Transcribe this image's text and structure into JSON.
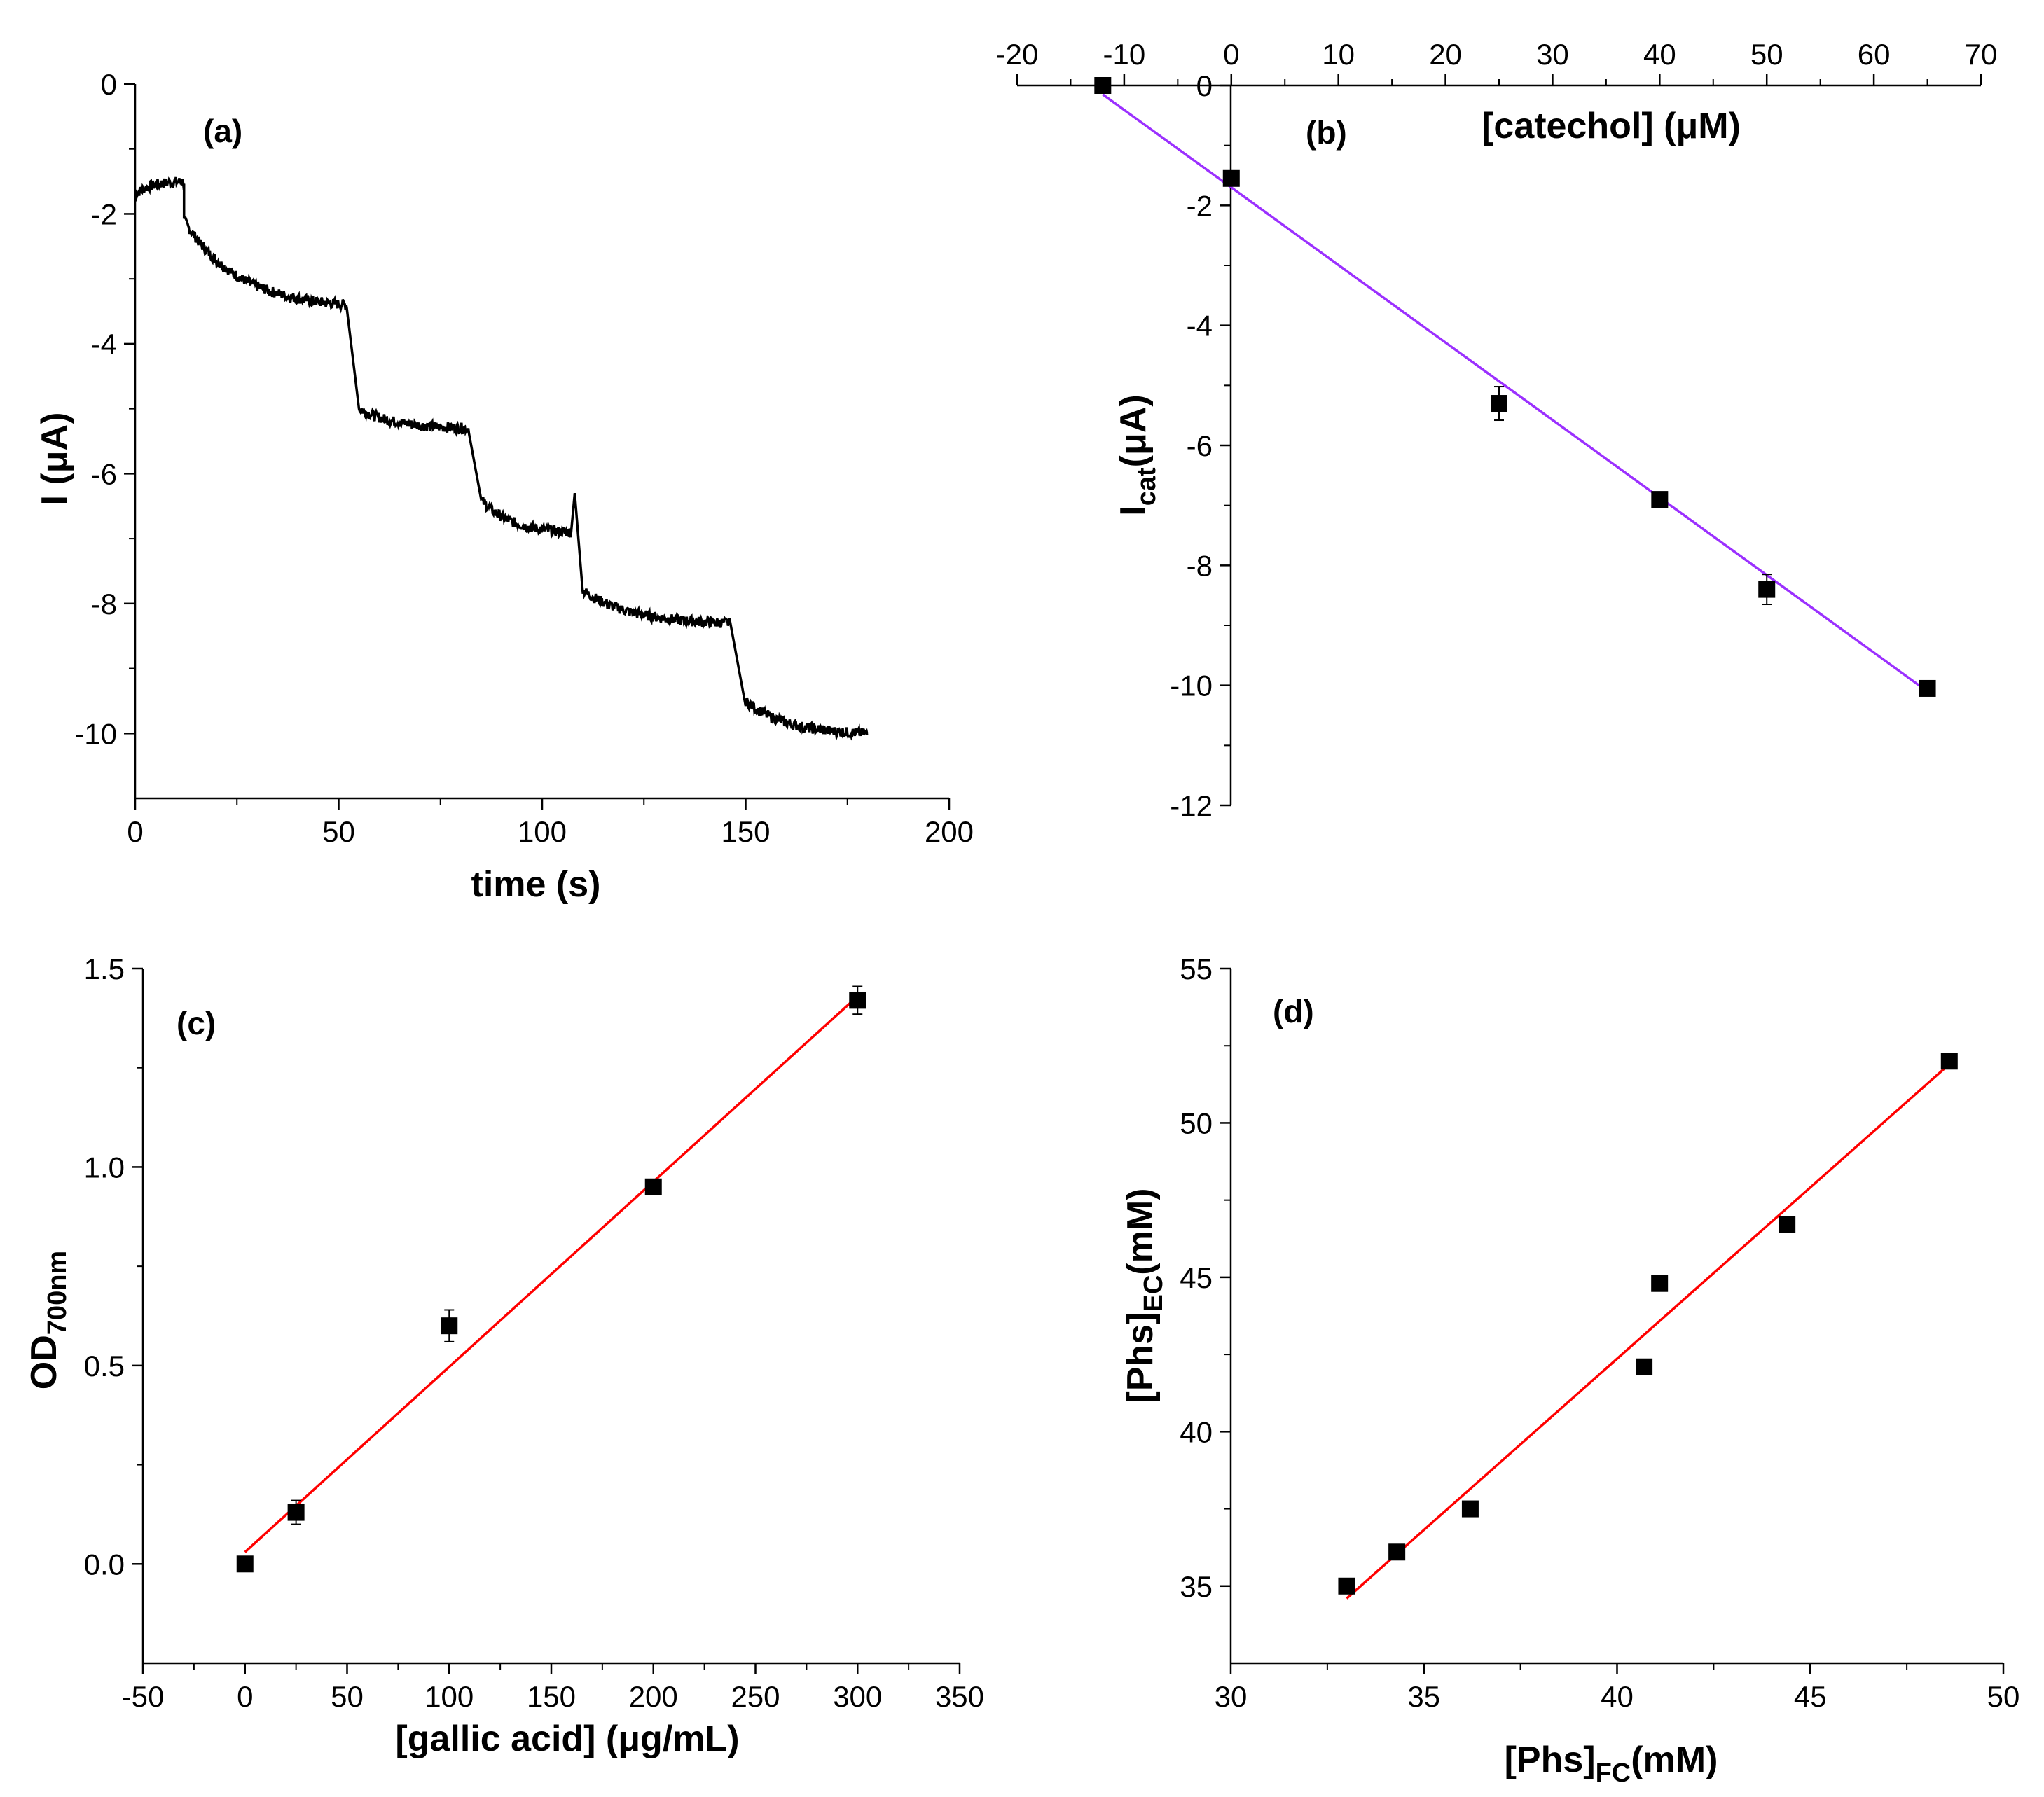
{
  "colors": {
    "axis": "#000000",
    "trace": "#000000",
    "fit_b": "#9b30ff",
    "fit_cd": "#ff0000",
    "marker": "#000000"
  },
  "chart_data": [
    {
      "id": "a",
      "type": "line",
      "panel_label": "(a)",
      "xlabel": "time (s)",
      "ylabel": "I (μA)",
      "xlim": [
        0,
        200
      ],
      "ylim": [
        -11,
        0
      ],
      "xticks": [
        "0",
        "50",
        "100",
        "150",
        "200"
      ],
      "yticks": [
        "0",
        "-2",
        "-4",
        "-6",
        "-8",
        "-10"
      ],
      "series": [
        {
          "name": "amperometric response",
          "steps": [
            {
              "t_start": 0,
              "t_end": 12,
              "i_start": -1.7,
              "i_end": -1.5
            },
            {
              "t_start": 12,
              "t_end": 52,
              "i_start": -2.1,
              "i_end": -3.4
            },
            {
              "t_start": 55,
              "t_end": 82,
              "i_start": -5.0,
              "i_end": -5.3
            },
            {
              "t_start": 85,
              "t_end": 107,
              "i_start": -6.4,
              "i_end": -6.9
            },
            {
              "t_start": 110,
              "t_end": 146,
              "i_start": -7.8,
              "i_end": -8.3
            },
            {
              "t_start": 150,
              "t_end": 180,
              "i_start": -9.5,
              "i_end": -10.0
            }
          ],
          "spike": {
            "t": 108,
            "i": -6.3
          }
        }
      ]
    },
    {
      "id": "b",
      "type": "scatter",
      "panel_label": "(b)",
      "xlabel": "[catechol] (μM)",
      "ylabel_main": "I",
      "ylabel_sub": "cat",
      "ylabel_rest": "(μA)",
      "xlim": [
        -20,
        70
      ],
      "ylim": [
        -12,
        0
      ],
      "xticks": [
        "-20",
        "-10",
        "0",
        "10",
        "20",
        "30",
        "40",
        "50",
        "60",
        "70"
      ],
      "yticks": [
        "0",
        "-2",
        "-4",
        "-6",
        "-8",
        "-10",
        "-12"
      ],
      "points": [
        {
          "x": -12,
          "y": 0.0,
          "err": 0.0
        },
        {
          "x": 0,
          "y": -1.55,
          "err": 0.1
        },
        {
          "x": 25,
          "y": -5.3,
          "err": 0.28
        },
        {
          "x": 40,
          "y": -6.9,
          "err": 0.12
        },
        {
          "x": 50,
          "y": -8.4,
          "err": 0.25
        },
        {
          "x": 65,
          "y": -10.05,
          "err": 0.12
        }
      ],
      "fit": {
        "x": [
          -12,
          65
        ],
        "y": [
          -0.15,
          -10.1
        ]
      }
    },
    {
      "id": "c",
      "type": "scatter",
      "panel_label": "(c)",
      "xlabel": "[gallic acid] (μg/mL)",
      "ylabel_main": "OD",
      "ylabel_sub": "700nm",
      "ylabel_rest": "",
      "xlim": [
        -50,
        350
      ],
      "ylim": [
        -0.25,
        1.5
      ],
      "xticks": [
        "-50",
        "0",
        "50",
        "100",
        "150",
        "200",
        "250",
        "300",
        "350"
      ],
      "yticks": [
        "0.0",
        "0.5",
        "1.0",
        "1.5"
      ],
      "points": [
        {
          "x": 0,
          "y": 0.0,
          "err": 0.0
        },
        {
          "x": 25,
          "y": 0.13,
          "err": 0.03
        },
        {
          "x": 100,
          "y": 0.6,
          "err": 0.04
        },
        {
          "x": 200,
          "y": 0.95,
          "err": 0.01
        },
        {
          "x": 300,
          "y": 1.42,
          "err": 0.035
        }
      ],
      "fit": {
        "x": [
          0,
          300
        ],
        "y": [
          0.03,
          1.43
        ]
      }
    },
    {
      "id": "d",
      "type": "scatter",
      "panel_label": "(d)",
      "xlabel_main": "[Phs]",
      "xlabel_sub": "FC",
      "xlabel_rest": "(mM)",
      "ylabel_main": "[Phs]",
      "ylabel_sub": "EC",
      "ylabel_rest": "(mM)",
      "xlim": [
        30,
        50
      ],
      "ylim": [
        32.5,
        55
      ],
      "xticks": [
        "30",
        "35",
        "40",
        "45",
        "50"
      ],
      "yticks": [
        "35",
        "40",
        "45",
        "50",
        "55"
      ],
      "points": [
        {
          "x": 33.0,
          "y": 35.0,
          "err": 0
        },
        {
          "x": 34.3,
          "y": 36.1,
          "err": 0
        },
        {
          "x": 36.2,
          "y": 37.5,
          "err": 0
        },
        {
          "x": 40.7,
          "y": 42.1,
          "err": 0
        },
        {
          "x": 41.1,
          "y": 44.8,
          "err": 0
        },
        {
          "x": 44.4,
          "y": 46.7,
          "err": 0
        },
        {
          "x": 48.6,
          "y": 52.0,
          "err": 0
        }
      ],
      "fit": {
        "x": [
          33.0,
          48.6
        ],
        "y": [
          34.6,
          51.9
        ]
      }
    }
  ]
}
